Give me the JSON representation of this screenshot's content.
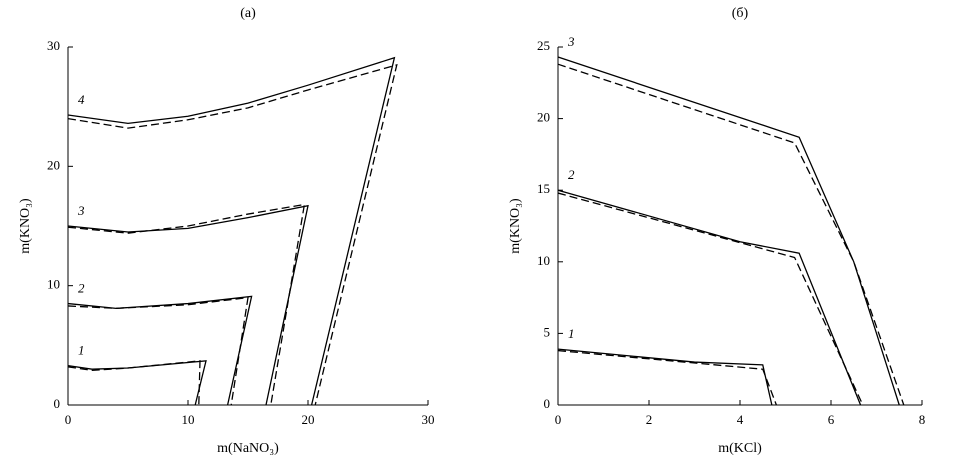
{
  "chart_data": [
    {
      "type": "line",
      "title": "(a)",
      "x_label": "m(NaNO₃)",
      "y_label": "m(KNO₃)",
      "xlim": [
        0,
        30
      ],
      "ylim": [
        0,
        30
      ],
      "xticks": [
        0,
        10,
        20,
        30
      ],
      "yticks": [
        0,
        10,
        20,
        30
      ],
      "series": [
        {
          "name": "4",
          "color": "#000000",
          "dashed": false,
          "x": [
            0,
            5,
            10,
            15,
            20,
            27.2,
            20.3
          ],
          "values": [
            24.3,
            23.6,
            24.2,
            25.3,
            26.8,
            29.1,
            0
          ]
        },
        {
          "color": "#000000",
          "dashed": true,
          "x": [
            0,
            5,
            10,
            15,
            20,
            27.4,
            20.6
          ],
          "values": [
            24,
            23.2,
            23.9,
            24.9,
            26.4,
            28.5,
            0
          ]
        },
        {
          "name": "3",
          "color": "#000000",
          "dashed": false,
          "x": [
            0,
            5,
            10,
            15,
            20,
            16.5
          ],
          "values": [
            15,
            14.5,
            14.8,
            15.7,
            16.7,
            0
          ]
        },
        {
          "color": "#000000",
          "dashed": true,
          "x": [
            0,
            5,
            10,
            15,
            19.7,
            16.9
          ],
          "values": [
            14.9,
            14.4,
            15,
            16,
            16.8,
            0
          ]
        },
        {
          "name": "2",
          "color": "#000000",
          "dashed": false,
          "x": [
            0,
            4,
            10,
            15.3,
            13.3
          ],
          "values": [
            8.5,
            8.1,
            8.5,
            9.1,
            0
          ]
        },
        {
          "color": "#000000",
          "dashed": true,
          "x": [
            0,
            4,
            10,
            15,
            13.6
          ],
          "values": [
            8.3,
            8.1,
            8.4,
            9,
            0
          ]
        },
        {
          "name": "1",
          "color": "#000000",
          "dashed": false,
          "x": [
            0,
            2,
            5,
            11.5,
            10.6
          ],
          "values": [
            3.3,
            3,
            3.1,
            3.7,
            0
          ]
        },
        {
          "color": "#000000",
          "dashed": true,
          "x": [
            0,
            2,
            5,
            11,
            10.9
          ],
          "values": [
            3.2,
            2.9,
            3.1,
            3.7,
            0
          ]
        }
      ]
    },
    {
      "type": "line",
      "title": "(б)",
      "x_label": "m(KCl)",
      "y_label": "m(KNO₃)",
      "xlim": [
        0,
        8
      ],
      "ylim": [
        0,
        25
      ],
      "xticks": [
        0,
        2,
        4,
        6,
        8
      ],
      "yticks": [
        0,
        5,
        10,
        15,
        20,
        25
      ],
      "series": [
        {
          "name": "3",
          "color": "#000000",
          "dashed": false,
          "x": [
            0,
            5.3,
            6.5,
            7.5
          ],
          "values": [
            24.3,
            18.7,
            10,
            0
          ]
        },
        {
          "color": "#000000",
          "dashed": true,
          "x": [
            0,
            5.2,
            6.5,
            7.6
          ],
          "values": [
            23.8,
            18.3,
            10,
            0
          ]
        },
        {
          "name": "2",
          "color": "#000000",
          "dashed": false,
          "x": [
            0,
            4,
            5.3,
            6.65
          ],
          "values": [
            15,
            11.4,
            10.6,
            0
          ]
        },
        {
          "color": "#000000",
          "dashed": true,
          "x": [
            0,
            5.2,
            6.7
          ],
          "values": [
            14.8,
            10.3,
            0
          ]
        },
        {
          "name": "1",
          "color": "#000000",
          "dashed": false,
          "x": [
            0,
            3,
            4.5,
            4.7
          ],
          "values": [
            3.9,
            3,
            2.8,
            0
          ]
        },
        {
          "color": "#000000",
          "dashed": true,
          "x": [
            0,
            4.5,
            4.8
          ],
          "values": [
            3.8,
            2.5,
            0
          ]
        }
      ]
    }
  ]
}
